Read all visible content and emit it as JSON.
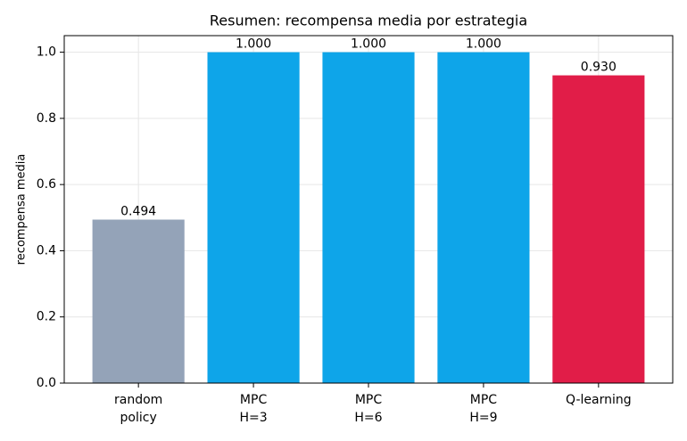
{
  "chart_data": {
    "type": "bar",
    "title": "Resumen: recompensa media por estrategia",
    "y_label": "recompensa media",
    "categories": [
      "random\npolicy",
      "MPC\nH=3",
      "MPC\nH=6",
      "MPC\nH=9",
      "Q-learning"
    ],
    "values": [
      0.494,
      1.0,
      1.0,
      1.0,
      0.93
    ],
    "value_labels": [
      "0.494",
      "1.000",
      "1.000",
      "1.000",
      "0.930"
    ],
    "colors": [
      "#94a3b8",
      "#0ea5e9",
      "#0ea5e9",
      "#0ea5e9",
      "#e11d48"
    ],
    "ylim": [
      0,
      1.05
    ],
    "yticks": [
      {
        "value": 0,
        "label": "0.0"
      },
      0.2,
      0.4,
      0.6,
      0.8,
      {
        "value": 1,
        "label": "1.0"
      }
    ],
    "grid": true
  }
}
